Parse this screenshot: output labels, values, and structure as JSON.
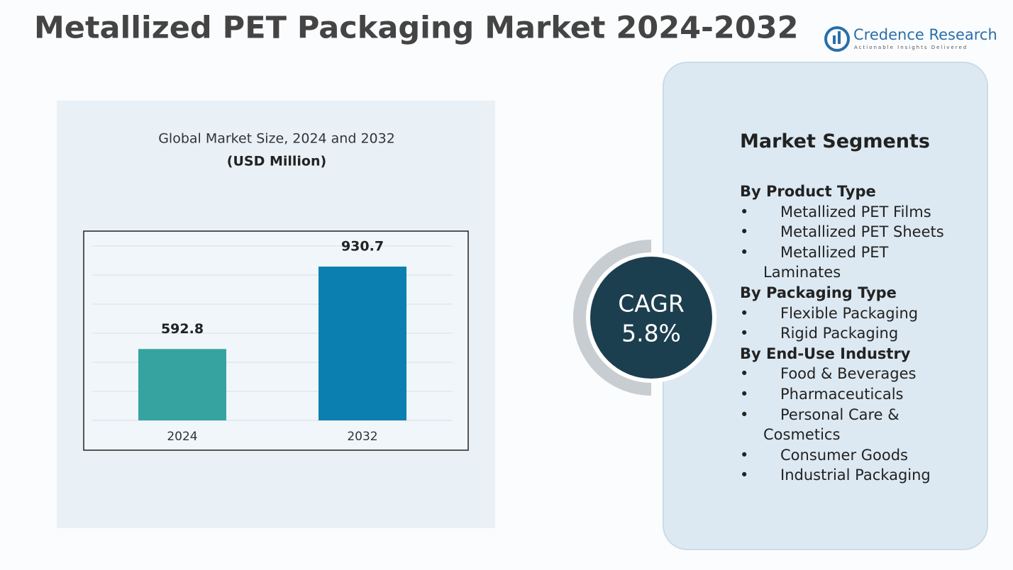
{
  "header": {
    "title": "Metallized PET Packaging Market  2024-2032",
    "logo": "Credence Research",
    "tagline": "Actionable Insights Delivered"
  },
  "chart_data": {
    "type": "bar",
    "title": "Global Market Size, 2024 and 2032",
    "subtitle": "(USD Million)",
    "categories": [
      "2024",
      "2032"
    ],
    "values": [
      592.8,
      930.7
    ],
    "colors": [
      "#36a3a0",
      "#0a7fb0"
    ],
    "ylim": [
      300,
      1050
    ]
  },
  "cagr": {
    "label": "CAGR",
    "value": "5.8%"
  },
  "segments": {
    "title": "Market Segments",
    "groups": [
      {
        "name": "By Product Type",
        "items": [
          "Metallized PET Films",
          "Metallized PET Sheets",
          "Metallized PET Laminates"
        ]
      },
      {
        "name": "By Packaging Type",
        "items": [
          "Flexible Packaging",
          "Rigid Packaging"
        ]
      },
      {
        "name": "By End-Use Industry",
        "items": [
          "Food & Beverages",
          "Pharmaceuticals",
          "Personal Care & Cosmetics",
          "Consumer Goods",
          "Industrial Packaging"
        ]
      }
    ]
  }
}
